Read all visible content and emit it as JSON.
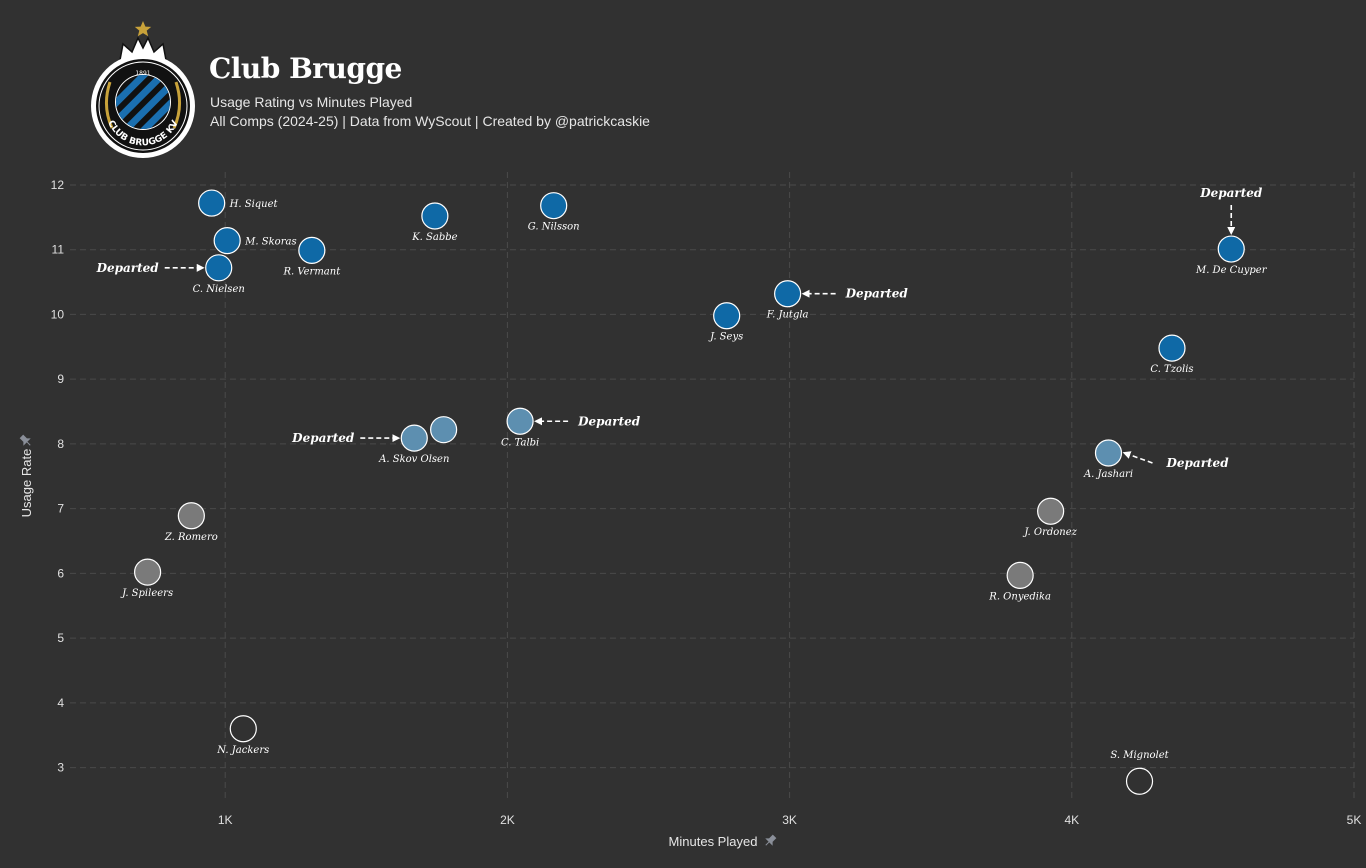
{
  "header": {
    "title": "Club Brugge",
    "subtitle": "Usage Rating vs Minutes Played",
    "caption": "All Comps (2024-25) | Data from WyScout | Created by @patrickcaskie"
  },
  "logo": {
    "text": "CLUB BRUGGE KV",
    "year": "1891",
    "colors": {
      "ring": "#ffffff",
      "inner": "#111111",
      "stripe": "#1a6fb0",
      "crown": "#ffffff",
      "star": "#c8a23a",
      "laurel": "#c8a23a"
    }
  },
  "colors": {
    "background": "#313131",
    "grid": "#4a4a4a",
    "high": "#0f69a6",
    "mid": "#5d8fb0",
    "low": "#7a7a7a",
    "none": "#313131",
    "stroke": "#ffffff"
  },
  "chart_data": {
    "type": "scatter",
    "xlabel": "Minutes Played",
    "ylabel": "Usage Rate",
    "xlim": [
      450,
      5000
    ],
    "ylim": [
      2.5,
      12.2
    ],
    "x_ticks": [
      1000,
      2000,
      3000,
      4000,
      5000
    ],
    "x_tick_labels": [
      "1K",
      "2K",
      "3K",
      "4K",
      "5K"
    ],
    "y_ticks": [
      3,
      4,
      5,
      6,
      7,
      8,
      9,
      10,
      11,
      12
    ],
    "y_tick_labels": [
      "3",
      "4",
      "5",
      "6",
      "7",
      "8",
      "9",
      "10",
      "11",
      "12"
    ],
    "annotation_text": "Departed",
    "points": [
      {
        "name": "H. Siquet",
        "x": 952,
        "y": 11.72,
        "group": "high",
        "label_pos": "right"
      },
      {
        "name": "M. Skoras",
        "x": 1007,
        "y": 11.14,
        "group": "high",
        "label_pos": "right"
      },
      {
        "name": "C. Nielsen",
        "x": 977,
        "y": 10.72,
        "group": "high",
        "label_pos": "below",
        "departed": "left"
      },
      {
        "name": "R. Vermant",
        "x": 1307,
        "y": 10.99,
        "group": "high",
        "label_pos": "below"
      },
      {
        "name": "K. Sabbe",
        "x": 1743,
        "y": 11.52,
        "group": "high",
        "label_pos": "below"
      },
      {
        "name": "G. Nilsson",
        "x": 2164,
        "y": 11.68,
        "group": "high",
        "label_pos": "below"
      },
      {
        "name": "J. Seys",
        "x": 2777,
        "y": 9.98,
        "group": "high",
        "label_pos": "below"
      },
      {
        "name": "F. Jutgla",
        "x": 2993,
        "y": 10.32,
        "group": "high",
        "label_pos": "below",
        "departed": "right"
      },
      {
        "name": "M. De Cuyper",
        "x": 4565,
        "y": 11.01,
        "group": "high",
        "label_pos": "below",
        "departed": "above"
      },
      {
        "name": "C. Tzolis",
        "x": 4355,
        "y": 9.48,
        "group": "high",
        "label_pos": "below"
      },
      {
        "name": "A. Skov Olsen",
        "x": 1670,
        "y": 8.09,
        "group": "mid",
        "label_pos": "below",
        "departed": "left"
      },
      {
        "name": "",
        "x": 1774,
        "y": 8.22,
        "group": "mid",
        "label_pos": "none"
      },
      {
        "name": "C. Talbi",
        "x": 2045,
        "y": 8.35,
        "group": "mid",
        "label_pos": "below",
        "departed": "right"
      },
      {
        "name": "A. Jashari",
        "x": 4130,
        "y": 7.86,
        "group": "mid",
        "label_pos": "below",
        "departed": "right"
      },
      {
        "name": "Z. Romero",
        "x": 880,
        "y": 6.89,
        "group": "low",
        "label_pos": "below"
      },
      {
        "name": "J. Spileers",
        "x": 725,
        "y": 6.02,
        "group": "low",
        "label_pos": "below"
      },
      {
        "name": "J. Ordonez",
        "x": 3925,
        "y": 6.96,
        "group": "low",
        "label_pos": "below"
      },
      {
        "name": "R. Onyedika",
        "x": 3817,
        "y": 5.97,
        "group": "low",
        "label_pos": "below"
      },
      {
        "name": "N. Jackers",
        "x": 1064,
        "y": 3.6,
        "group": "none",
        "label_pos": "below"
      },
      {
        "name": "S. Mignolet",
        "x": 4240,
        "y": 2.79,
        "group": "none",
        "label_pos": "above"
      }
    ]
  }
}
